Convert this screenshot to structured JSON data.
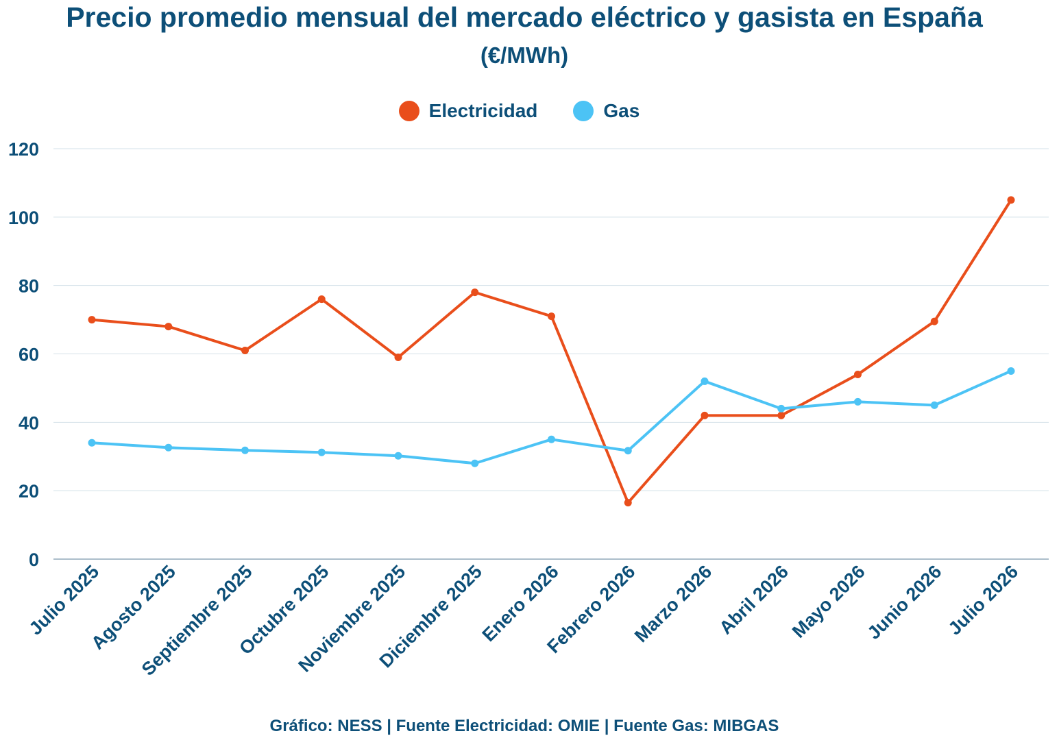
{
  "chart_data": {
    "type": "line",
    "title": "Precio promedio mensual del mercado eléctrico y gasista en España",
    "subtitle": "(€/MWh)",
    "categories": [
      "Julio 2025",
      "Agosto 2025",
      "Septiembre 2025",
      "Octubre 2025",
      "Noviembre 2025",
      "Diciembre 2025",
      "Enero 2026",
      "Febrero 2026",
      "Marzo 2026",
      "Abril 2026",
      "Mayo 2026",
      "Junio 2026",
      "Julio 2026"
    ],
    "series": [
      {
        "name": "Electricidad",
        "color": "#e94e1b",
        "values": [
          70,
          68,
          61,
          76,
          59,
          78,
          71,
          16.5,
          42,
          42,
          54,
          69.5,
          105
        ]
      },
      {
        "name": "Gas",
        "color": "#4cc3f5",
        "values": [
          34,
          32.6,
          31.8,
          31.2,
          30.2,
          28,
          35,
          31.7,
          52,
          44,
          46,
          45,
          55
        ]
      }
    ],
    "yticks": [
      "0",
      "20",
      "40",
      "60",
      "80",
      "100",
      "120"
    ],
    "ylim": [
      0,
      120
    ],
    "grid": true,
    "legend_position": "top-center",
    "footer": "Gráfico: NESS | Fuente Electricidad: OMIE | Fuente Gas: MIBGAS"
  }
}
